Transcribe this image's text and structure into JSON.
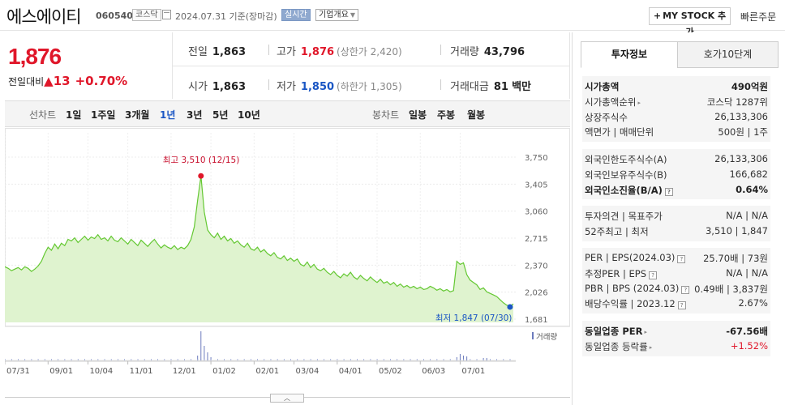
{
  "header": {
    "stock_name": "에스에이티",
    "stock_code": "060540",
    "market": "코스닥",
    "date_text": "2024.07.31  기준(장마감)",
    "realtime_label": "실시간",
    "company_overview_label": "기업개요",
    "mystock_label": "MY STOCK 추가",
    "quick_order_label": "빠른주문"
  },
  "price": {
    "current": "1,876",
    "change_label": "전일대비",
    "change_value": "13",
    "change_pct": "+0.70%"
  },
  "summary": {
    "prev_close_label": "전일",
    "prev_close": "1,863",
    "high_label": "고가",
    "high": "1,876",
    "upper_limit": "(상한가 2,420)",
    "volume_label": "거래량",
    "volume": "43,796",
    "open_label": "시가",
    "open": "1,863",
    "low_label": "저가",
    "low": "1,850",
    "lower_limit": "(하한가 1,305)",
    "amount_label": "거래대금",
    "amount": "81",
    "amount_unit": "백만"
  },
  "period_bar": {
    "line_label": "선차트",
    "line_items": [
      "1일",
      "1주일",
      "3개월",
      "1년",
      "3년",
      "5년",
      "10년"
    ],
    "active": "1년",
    "candle_label": "봉차트",
    "candle_items": [
      "일봉",
      "주봉",
      "월봉"
    ]
  },
  "chart_data": {
    "type": "area",
    "y_ticks": [
      "3,750",
      "3,405",
      "3,060",
      "2,715",
      "2,370",
      "2,026",
      "1,681"
    ],
    "ylim": [
      1681,
      3750
    ],
    "x_ticks": [
      "07/31",
      "09/01",
      "10/04",
      "11/01",
      "12/01",
      "01/02",
      "02/01",
      "03/04",
      "04/01",
      "05/02",
      "06/03",
      "07/01"
    ],
    "high_annotation": "최고 3,510 (12/15)",
    "low_annotation": "최저 1,847 (07/30)",
    "volume_label": "거래량",
    "line_color": "#64c832",
    "fill_color": "#dff3cf",
    "values": [
      2350,
      2330,
      2300,
      2320,
      2340,
      2310,
      2350,
      2330,
      2290,
      2320,
      2360,
      2420,
      2520,
      2600,
      2560,
      2640,
      2580,
      2650,
      2620,
      2700,
      2680,
      2720,
      2660,
      2700,
      2740,
      2690,
      2730,
      2710,
      2760,
      2700,
      2720,
      2680,
      2740,
      2690,
      2670,
      2720,
      2680,
      2640,
      2700,
      2660,
      2620,
      2690,
      2650,
      2610,
      2660,
      2700,
      2640,
      2590,
      2630,
      2600,
      2580,
      2620,
      2570,
      2600,
      2580,
      2620,
      2700,
      2860,
      3200,
      3510,
      3050,
      2820,
      2760,
      2720,
      2780,
      2700,
      2740,
      2680,
      2710,
      2650,
      2680,
      2630,
      2600,
      2650,
      2580,
      2560,
      2600,
      2540,
      2570,
      2520,
      2490,
      2530,
      2470,
      2450,
      2490,
      2430,
      2460,
      2420,
      2450,
      2380,
      2360,
      2410,
      2340,
      2380,
      2320,
      2300,
      2330,
      2280,
      2250,
      2290,
      2240,
      2210,
      2260,
      2230,
      2280,
      2220,
      2190,
      2240,
      2200,
      2170,
      2220,
      2180,
      2150,
      2190,
      2140,
      2160,
      2120,
      2150,
      2100,
      2130,
      2090,
      2110,
      2080,
      2100,
      2070,
      2090,
      2060,
      2070,
      2100,
      2080,
      2050,
      2070,
      2040,
      2060,
      2030,
      2045,
      2420,
      2380,
      2400,
      2250,
      2180,
      2150,
      2120,
      2060,
      2080,
      2030,
      2010,
      1990,
      1970,
      1930,
      1890,
      1860,
      1847,
      1876
    ]
  },
  "sidebar": {
    "tab_active": "투자정보",
    "tab_other": "호가10단계",
    "group1": [
      {
        "label": "시가총액",
        "value": "490억원",
        "bold": true
      },
      {
        "label": "시가총액순위",
        "value": "코스닥  1287위"
      },
      {
        "label": "상장주식수",
        "value": "26,133,306"
      },
      {
        "label": "액면가 | 매매단위",
        "value": "500원 | 1주"
      }
    ],
    "group2": [
      {
        "label": "외국인한도주식수(A)",
        "value": "26,133,306"
      },
      {
        "label": "외국인보유주식수(B)",
        "value": "166,682"
      },
      {
        "label": "외국인소진율(B/A)",
        "value": "0.64%",
        "bold": true
      }
    ],
    "group3": [
      {
        "label": "투자의견 | 목표주가",
        "value": "N/A | N/A"
      },
      {
        "label": "52주최고 | 최저",
        "value": "3,510 | 1,847"
      }
    ],
    "group4": [
      {
        "label": "PER | EPS(2024.03)",
        "value": "25.70배 | 73원"
      },
      {
        "label": "추정PER | EPS",
        "value": "N/A | N/A"
      },
      {
        "label": "PBR | BPS (2024.03)",
        "value": "0.49배 | 3,837원"
      },
      {
        "label": "배당수익률 | 2023.12",
        "value": "2.67%"
      }
    ],
    "group5": [
      {
        "label": "동일업종 PER",
        "value": "-67.56배",
        "bold": true
      },
      {
        "label": "동일업종 등락률",
        "value": "+1.52%",
        "red": true
      }
    ]
  }
}
